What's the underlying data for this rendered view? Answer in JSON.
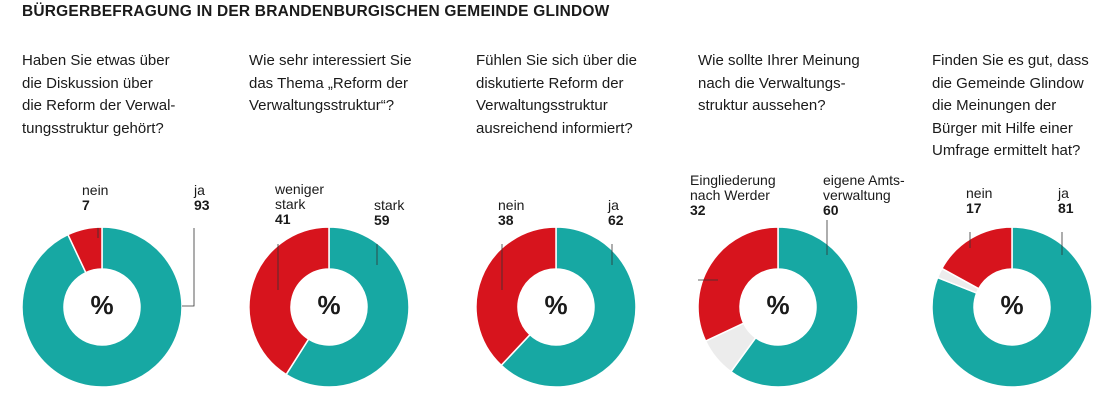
{
  "title": "BÜRGERBEFRAGUNG IN DER BRANDENBURGISCHEN GEMEINDE GLINDOW",
  "colors": {
    "ja": "#17a8a3",
    "nein": "#d7141d",
    "rest": "#ececec"
  },
  "center_symbol": "%",
  "chart_data": [
    {
      "type": "pie",
      "question_lines": [
        "Haben Sie etwas über",
        "die Diskussion über",
        "die Reform der Verwal-",
        "tungsstruktur gehört?"
      ],
      "slices": [
        {
          "label_lines": [
            "ja"
          ],
          "value": 93,
          "color": "#17a8a3"
        },
        {
          "label_lines": [
            "nein"
          ],
          "value": 7,
          "color": "#d7141d"
        }
      ]
    },
    {
      "type": "pie",
      "question_lines": [
        "Wie sehr interessiert Sie",
        "das Thema „Reform der",
        "Verwaltungsstruktur“?"
      ],
      "slices": [
        {
          "label_lines": [
            "stark"
          ],
          "value": 59,
          "color": "#17a8a3"
        },
        {
          "label_lines": [
            "weniger",
            "stark"
          ],
          "value": 41,
          "color": "#d7141d"
        }
      ]
    },
    {
      "type": "pie",
      "question_lines": [
        "Fühlen Sie sich über die",
        "diskutierte Reform der",
        "Verwaltungsstruktur",
        "ausreichend informiert?"
      ],
      "slices": [
        {
          "label_lines": [
            "ja"
          ],
          "value": 62,
          "color": "#17a8a3"
        },
        {
          "label_lines": [
            "nein"
          ],
          "value": 38,
          "color": "#d7141d"
        }
      ]
    },
    {
      "type": "pie",
      "question_lines": [
        "Wie sollte Ihrer Meinung",
        "nach die Verwaltungs-",
        "struktur aussehen?"
      ],
      "slices": [
        {
          "label_lines": [
            "eigene Amts-",
            "verwaltung"
          ],
          "value": 60,
          "color": "#17a8a3"
        },
        {
          "label_lines": [],
          "value": 8,
          "color": "#ececec"
        },
        {
          "label_lines": [
            "Eingliederung",
            "nach Werder"
          ],
          "value": 32,
          "color": "#d7141d"
        }
      ]
    },
    {
      "type": "pie",
      "question_lines": [
        "Finden Sie es gut, dass",
        "die Gemeinde Glindow",
        "die Meinungen der",
        "Bürger mit Hilfe einer",
        "Umfrage ermittelt hat?"
      ],
      "slices": [
        {
          "label_lines": [
            "ja"
          ],
          "value": 81,
          "color": "#17a8a3"
        },
        {
          "label_lines": [],
          "value": 2,
          "color": "#ececec"
        },
        {
          "label_lines": [
            "nein"
          ],
          "value": 17,
          "color": "#d7141d"
        }
      ]
    }
  ]
}
